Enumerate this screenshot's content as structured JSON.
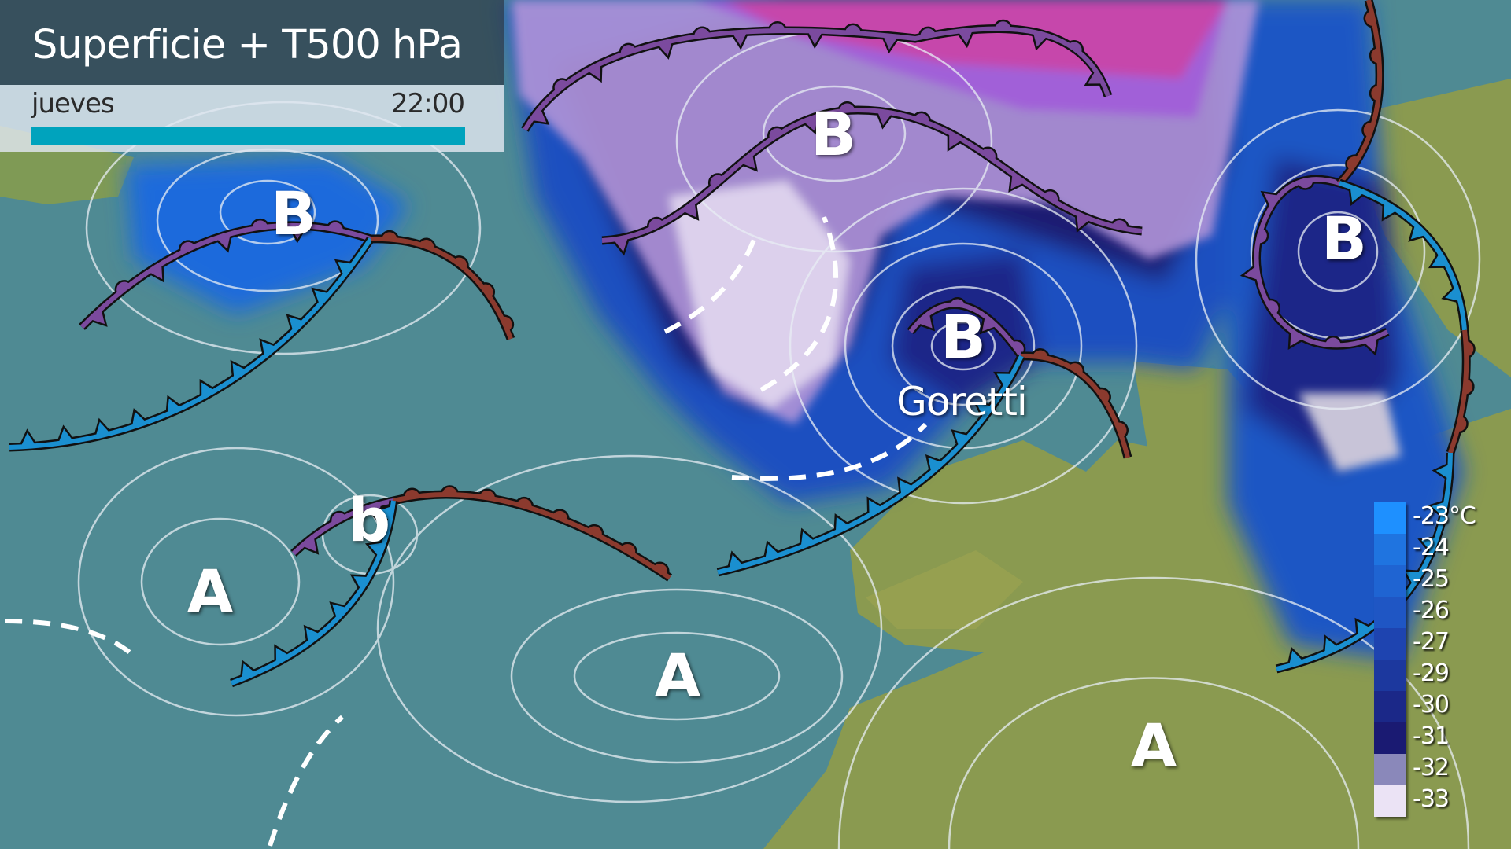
{
  "header": {
    "title": "Superficie + T500 hPa",
    "day": "jueves",
    "time": "22:00",
    "timeline_progress": 1.0,
    "accent_color": "#00a3bd"
  },
  "map": {
    "pressure_labels": [
      {
        "text": "B",
        "type": "low"
      },
      {
        "text": "B",
        "type": "low"
      },
      {
        "text": "B",
        "type": "low"
      },
      {
        "text": "B",
        "type": "low"
      },
      {
        "text": "b",
        "type": "low"
      },
      {
        "text": "A",
        "type": "high"
      },
      {
        "text": "A",
        "type": "high"
      },
      {
        "text": "A",
        "type": "high"
      }
    ],
    "storm_name": "Goretti",
    "front_colors": {
      "cold": "#1a8fd0",
      "warm": "#8b3a2e",
      "occluded": "#7b4a9e"
    },
    "sea_color": "#4f8a93",
    "land_color": "#8a9a50"
  },
  "legend": {
    "items": [
      {
        "label": "-23°C",
        "color": "#1e90ff"
      },
      {
        "label": "-24",
        "color": "#1f74e0"
      },
      {
        "label": "-25",
        "color": "#1f64d2"
      },
      {
        "label": "-26",
        "color": "#1f56c4"
      },
      {
        "label": "-27",
        "color": "#1e44b0"
      },
      {
        "label": "-29",
        "color": "#1c389e"
      },
      {
        "label": "-30",
        "color": "#1b2888"
      },
      {
        "label": "-31",
        "color": "#1a1a72"
      },
      {
        "label": "-32",
        "color": "#8a88ba"
      },
      {
        "label": "-33",
        "color": "#ebe3f5"
      }
    ]
  }
}
